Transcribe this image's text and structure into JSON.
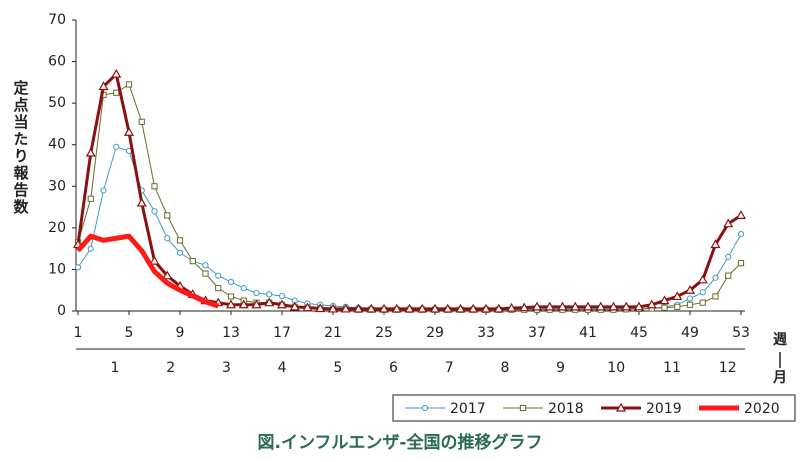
{
  "chart_data": {
    "type": "line",
    "title": "図.インフルエンザ-全国の推移グラフ",
    "y_axis_label": "定点当たり報告数",
    "x_axis_label_top": "週",
    "x_axis_label_bottom": "月",
    "xlim": [
      1,
      53
    ],
    "xticks": [
      1,
      5,
      9,
      13,
      17,
      21,
      25,
      29,
      33,
      37,
      41,
      45,
      49,
      53
    ],
    "ylim": [
      0,
      70
    ],
    "yticks": [
      0,
      10,
      20,
      30,
      40,
      50,
      60,
      70
    ],
    "month_labels": [
      "1",
      "2",
      "3",
      "4",
      "5",
      "6",
      "7",
      "8",
      "9",
      "10",
      "11",
      "12"
    ],
    "legend": "bottom-right",
    "x": [
      1,
      2,
      3,
      4,
      5,
      6,
      7,
      8,
      9,
      10,
      11,
      12,
      13,
      14,
      15,
      16,
      17,
      18,
      19,
      20,
      21,
      22,
      23,
      24,
      25,
      26,
      27,
      28,
      29,
      30,
      31,
      32,
      33,
      34,
      35,
      36,
      37,
      38,
      39,
      40,
      41,
      42,
      43,
      44,
      45,
      46,
      47,
      48,
      49,
      50,
      51,
      52,
      53
    ],
    "series": [
      {
        "name": "2017",
        "color": "#3d9cc8",
        "marker": "circle",
        "line_width": 1,
        "values": [
          10.5,
          15,
          29,
          39.5,
          38.5,
          29,
          24,
          17.5,
          14,
          12,
          11,
          8.5,
          7,
          5.5,
          4.3,
          4,
          3.6,
          2.5,
          1.8,
          1.5,
          1.2,
          1,
          0.8,
          0.6,
          0.5,
          0.5,
          0.5,
          0.5,
          0.5,
          0.5,
          0.5,
          0.5,
          0.5,
          0.5,
          0.5,
          0.5,
          0.5,
          0.5,
          0.5,
          0.5,
          0.5,
          0.5,
          0.5,
          0.5,
          0.5,
          0.6,
          1,
          1.5,
          3,
          4.5,
          8,
          13,
          18.5
        ]
      },
      {
        "name": "2018",
        "color": "#6b6b2a",
        "marker": "square",
        "line_width": 1,
        "values": [
          16.5,
          27,
          52,
          52.5,
          54.5,
          45.5,
          30,
          23,
          17,
          12,
          9,
          5.5,
          3.5,
          2.5,
          2,
          2,
          1.5,
          1,
          0.8,
          0.6,
          0.5,
          0.4,
          0.3,
          0.3,
          0.3,
          0.3,
          0.3,
          0.3,
          0.3,
          0.3,
          0.3,
          0.3,
          0.3,
          0.3,
          0.3,
          0.3,
          0.3,
          0.3,
          0.3,
          0.3,
          0.3,
          0.3,
          0.3,
          0.4,
          0.5,
          0.6,
          0.8,
          1,
          1.5,
          2,
          3.5,
          8.5,
          11.5
        ]
      },
      {
        "name": "2019",
        "color": "#8b1010",
        "marker": "triangle",
        "line_width": 3,
        "values": [
          16,
          38,
          54,
          57,
          43,
          26,
          12,
          8.5,
          6,
          4,
          2.5,
          2,
          1.5,
          1.5,
          1.5,
          2,
          1.5,
          1,
          0.8,
          0.6,
          0.5,
          0.5,
          0.5,
          0.5,
          0.5,
          0.5,
          0.5,
          0.5,
          0.5,
          0.5,
          0.5,
          0.5,
          0.5,
          0.5,
          0.7,
          0.8,
          1,
          1,
          1,
          1,
          1,
          1,
          1,
          1,
          1,
          1.5,
          2.5,
          3.5,
          5,
          7.5,
          16,
          21,
          23
        ]
      },
      {
        "name": "2020",
        "color": "#ff1a1a",
        "marker": "none",
        "line_width": 5,
        "values": [
          14.5,
          18,
          17,
          17.5,
          18,
          14.5,
          9.5,
          6.7,
          5,
          3.6,
          2.2,
          1.2,
          null,
          null,
          null,
          null,
          null,
          null,
          null,
          null,
          null,
          null,
          null,
          null,
          null,
          null,
          null,
          null,
          null,
          null,
          null,
          null,
          null,
          null,
          null,
          null,
          null,
          null,
          null,
          null,
          null,
          null,
          null,
          null,
          null,
          null,
          null,
          null,
          null,
          null,
          null,
          null,
          null
        ]
      }
    ]
  }
}
